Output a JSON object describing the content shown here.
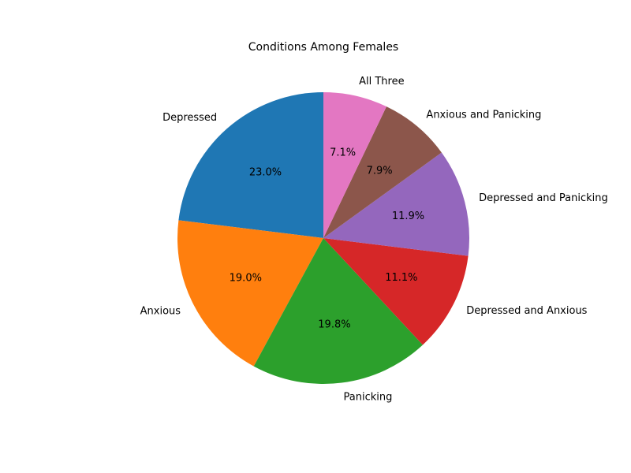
{
  "chart_data": {
    "type": "pie",
    "title": "Conditions Among Females",
    "start_angle_deg": 90,
    "direction": "counterclockwise",
    "slices": [
      {
        "label": "Depressed",
        "value": 23.0,
        "pct_text": "23.0%",
        "color": "#1f77b4"
      },
      {
        "label": "Anxious",
        "value": 19.0,
        "pct_text": "19.0%",
        "color": "#ff7f0e"
      },
      {
        "label": "Panicking",
        "value": 19.8,
        "pct_text": "19.8%",
        "color": "#2ca02c"
      },
      {
        "label": "Depressed and Anxious",
        "value": 11.1,
        "pct_text": "11.1%",
        "color": "#d62728"
      },
      {
        "label": "Depressed and Panicking",
        "value": 11.9,
        "pct_text": "11.9%",
        "color": "#9467bd"
      },
      {
        "label": "Anxious and Panicking",
        "value": 7.9,
        "pct_text": "7.9%",
        "color": "#8c564b"
      },
      {
        "label": "All Three",
        "value": 7.1,
        "pct_text": "7.1%",
        "color": "#e377c2"
      }
    ]
  }
}
